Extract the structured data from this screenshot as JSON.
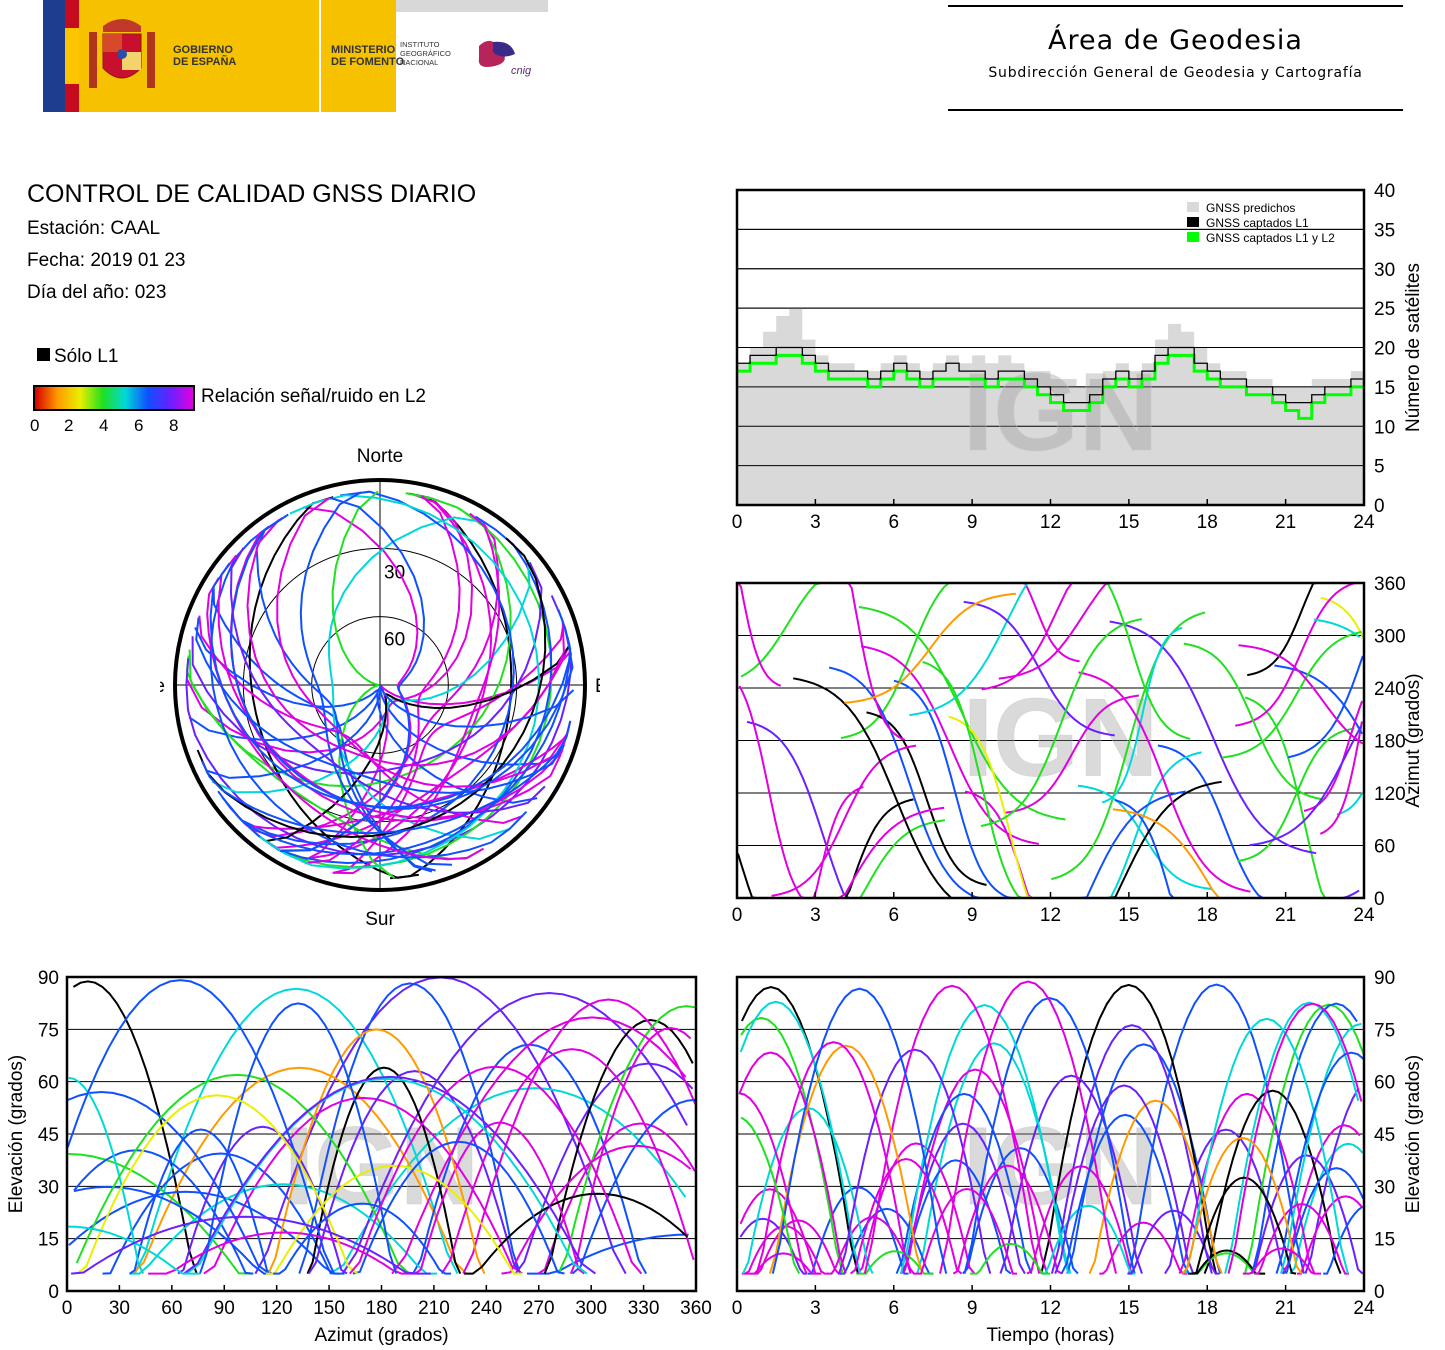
{
  "header": {
    "gobierno": "GOBIERNO\nDE ESPAÑA",
    "ministerio": "MINISTERIO\nDE FOMENTO",
    "instituto": "INSTITUTO\nGEOGRÁFICO\nNACIONAL",
    "cnig": "cnig",
    "area_title": "Área de Geodesia",
    "area_subtitle": "Subdirección General de Geodesia y Cartografía"
  },
  "report": {
    "title": "CONTROL DE CALIDAD GNSS DIARIO",
    "station": "Estación: CAAL",
    "date": "Fecha: 2019 01 23",
    "doy": "Día del año: 023"
  },
  "legend": {
    "l1_only": "Sólo L1",
    "snr_label": "Relación señal/ruido en L2",
    "snr_ticks": [
      "0",
      "2",
      "4",
      "6",
      "8"
    ],
    "snr_colors": [
      "#d40000",
      "#ff9a00",
      "#e8f000",
      "#20e020",
      "#00d8d8",
      "#1050ff",
      "#6a20ff",
      "#e000e0"
    ]
  },
  "watermark": "IGN",
  "chart_data": [
    {
      "type": "area",
      "id": "satellite-count",
      "x": [
        0,
        0.5,
        1,
        1.5,
        2,
        2.5,
        3,
        3.5,
        4,
        4.5,
        5,
        5.5,
        6,
        6.5,
        7,
        7.5,
        8,
        8.5,
        9,
        9.5,
        10,
        10.5,
        11,
        11.5,
        12,
        12.5,
        13,
        13.5,
        14,
        14.5,
        15,
        15.5,
        16,
        16.5,
        17,
        17.5,
        18,
        18.5,
        19,
        19.5,
        20,
        20.5,
        21,
        21.5,
        22,
        22.5,
        23,
        23.5,
        24
      ],
      "series": [
        {
          "name": "GNSS predichos",
          "color": "#d9d9d9",
          "values": [
            18,
            20,
            22,
            24,
            25,
            21,
            19,
            18,
            18,
            17,
            17,
            18,
            19,
            18,
            17,
            18,
            19,
            18,
            19,
            18,
            19,
            18,
            17,
            17,
            16,
            16,
            15,
            16,
            17,
            18,
            17,
            18,
            21,
            23,
            22,
            20,
            18,
            17,
            17,
            16,
            16,
            15,
            15,
            15,
            16,
            16,
            16,
            17,
            17
          ]
        },
        {
          "name": "GNSS captados L1",
          "color": "#000000",
          "values": [
            18,
            19,
            19,
            20,
            20,
            19,
            18,
            17,
            17,
            17,
            16,
            17,
            18,
            17,
            16,
            17,
            18,
            17,
            17,
            16,
            17,
            17,
            16,
            15,
            14,
            13,
            13,
            14,
            16,
            17,
            16,
            17,
            19,
            20,
            20,
            18,
            17,
            16,
            16,
            15,
            15,
            14,
            13,
            13,
            14,
            15,
            15,
            16,
            16
          ]
        },
        {
          "name": "GNSS captados L1 y L2",
          "color": "#00ff00",
          "values": [
            17,
            18,
            18,
            19,
            19,
            18,
            17,
            16,
            16,
            16,
            15,
            16,
            17,
            16,
            15,
            16,
            16,
            16,
            16,
            15,
            16,
            16,
            15,
            14,
            13,
            12,
            12,
            13,
            15,
            16,
            15,
            16,
            18,
            19,
            19,
            17,
            16,
            15,
            15,
            14,
            14,
            13,
            12,
            11,
            13,
            14,
            14,
            15,
            15
          ]
        }
      ],
      "xlim": [
        0,
        24
      ],
      "ylim": [
        0,
        40
      ],
      "xticks": [
        0,
        3,
        6,
        9,
        12,
        15,
        18,
        21,
        24
      ],
      "yticks": [
        0,
        5,
        10,
        15,
        20,
        25,
        30,
        35,
        40
      ],
      "ylabel": "Número de satélites",
      "grid": true,
      "legend_position": "top-right"
    },
    {
      "type": "line",
      "id": "azimuth-vs-time",
      "xlim": [
        0,
        24
      ],
      "ylim": [
        0,
        360
      ],
      "xticks": [
        0,
        3,
        6,
        9,
        12,
        15,
        18,
        21,
        24
      ],
      "yticks": [
        0,
        60,
        120,
        180,
        240,
        300,
        360
      ],
      "ylabel": "Azimut (grados)",
      "grid": true
    },
    {
      "type": "scatter",
      "id": "elevation-vs-azimuth",
      "xlim": [
        0,
        360
      ],
      "ylim": [
        0,
        90
      ],
      "xticks": [
        0,
        30,
        60,
        90,
        120,
        150,
        180,
        210,
        240,
        270,
        300,
        330,
        360
      ],
      "yticks": [
        0,
        15,
        30,
        45,
        60,
        75,
        90
      ],
      "xlabel": "Azimut (grados)",
      "ylabel": "Elevación (grados)",
      "grid": true
    },
    {
      "type": "line",
      "id": "elevation-vs-time",
      "xlim": [
        0,
        24
      ],
      "ylim": [
        0,
        90
      ],
      "xticks": [
        0,
        3,
        6,
        9,
        12,
        15,
        18,
        21,
        24
      ],
      "yticks": [
        0,
        15,
        30,
        45,
        60,
        75,
        90
      ],
      "xlabel": "Tiempo (horas)",
      "ylabel": "Elevación (grados)",
      "grid": true
    },
    {
      "type": "scatter",
      "id": "skyplot",
      "directions": {
        "north": "Norte",
        "south": "Sur",
        "east": "Este",
        "west": "Oeste"
      },
      "rings": [
        "30",
        "60"
      ]
    }
  ]
}
